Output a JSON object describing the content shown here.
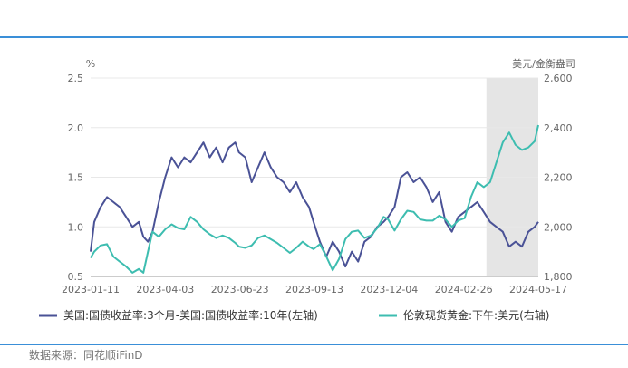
{
  "source_text": "数据来源：同花顺iFinD",
  "colors": {
    "left_series": "#4a5296",
    "right_series": "#3dbdb0",
    "shade": "#e5e5e5",
    "grid": "#e8e8e8"
  },
  "chart_data": {
    "type": "line",
    "left_axis": {
      "unit": "%",
      "ylim": [
        0.5,
        2.5
      ],
      "ticks": [
        "0.5",
        "1.0",
        "1.5",
        "2.0",
        "2.5"
      ]
    },
    "right_axis": {
      "unit": "美元/金衡盎司",
      "ylim": [
        1800,
        2600
      ],
      "ticks": [
        "1,800",
        "2,000",
        "2,200",
        "2,400",
        "2,600"
      ]
    },
    "x_ticks": [
      "2023-01-11",
      "2023-04-03",
      "2023-06-23",
      "2023-09-13",
      "2023-12-04",
      "2024-02-26",
      "2024-05-17"
    ],
    "shaded_range": [
      "2024-03-21",
      "2024-05-17"
    ],
    "legend_position": "bottom",
    "series": [
      {
        "name": "美国:国债收益率:3个月-美国:国债收益率:10年(左轴)",
        "axis": "left",
        "points": [
          [
            "2023-01-11",
            0.75
          ],
          [
            "2023-01-15",
            1.05
          ],
          [
            "2023-01-22",
            1.2
          ],
          [
            "2023-01-29",
            1.3
          ],
          [
            "2023-02-05",
            1.25
          ],
          [
            "2023-02-12",
            1.2
          ],
          [
            "2023-02-19",
            1.1
          ],
          [
            "2023-02-26",
            1.0
          ],
          [
            "2023-03-05",
            1.05
          ],
          [
            "2023-03-10",
            0.9
          ],
          [
            "2023-03-15",
            0.85
          ],
          [
            "2023-03-20",
            0.95
          ],
          [
            "2023-03-27",
            1.25
          ],
          [
            "2023-04-03",
            1.5
          ],
          [
            "2023-04-10",
            1.7
          ],
          [
            "2023-04-17",
            1.6
          ],
          [
            "2023-04-24",
            1.7
          ],
          [
            "2023-05-01",
            1.65
          ],
          [
            "2023-05-08",
            1.75
          ],
          [
            "2023-05-15",
            1.85
          ],
          [
            "2023-05-22",
            1.7
          ],
          [
            "2023-05-29",
            1.8
          ],
          [
            "2023-06-05",
            1.65
          ],
          [
            "2023-06-12",
            1.8
          ],
          [
            "2023-06-19",
            1.85
          ],
          [
            "2023-06-23",
            1.75
          ],
          [
            "2023-06-30",
            1.7
          ],
          [
            "2023-07-07",
            1.45
          ],
          [
            "2023-07-14",
            1.6
          ],
          [
            "2023-07-21",
            1.75
          ],
          [
            "2023-07-28",
            1.6
          ],
          [
            "2023-08-04",
            1.5
          ],
          [
            "2023-08-11",
            1.45
          ],
          [
            "2023-08-18",
            1.35
          ],
          [
            "2023-08-25",
            1.45
          ],
          [
            "2023-09-01",
            1.3
          ],
          [
            "2023-09-08",
            1.2
          ],
          [
            "2023-09-13",
            1.05
          ],
          [
            "2023-09-20",
            0.85
          ],
          [
            "2023-09-27",
            0.7
          ],
          [
            "2023-10-04",
            0.85
          ],
          [
            "2023-10-11",
            0.75
          ],
          [
            "2023-10-18",
            0.6
          ],
          [
            "2023-10-25",
            0.75
          ],
          [
            "2023-11-01",
            0.65
          ],
          [
            "2023-11-08",
            0.85
          ],
          [
            "2023-11-15",
            0.9
          ],
          [
            "2023-11-22",
            1.0
          ],
          [
            "2023-11-29",
            1.05
          ],
          [
            "2023-12-04",
            1.1
          ],
          [
            "2023-12-11",
            1.2
          ],
          [
            "2023-12-18",
            1.5
          ],
          [
            "2023-12-25",
            1.55
          ],
          [
            "2024-01-01",
            1.45
          ],
          [
            "2024-01-08",
            1.5
          ],
          [
            "2024-01-15",
            1.4
          ],
          [
            "2024-01-22",
            1.25
          ],
          [
            "2024-01-29",
            1.35
          ],
          [
            "2024-02-05",
            1.05
          ],
          [
            "2024-02-12",
            0.95
          ],
          [
            "2024-02-19",
            1.1
          ],
          [
            "2024-02-26",
            1.15
          ],
          [
            "2024-03-04",
            1.2
          ],
          [
            "2024-03-11",
            1.25
          ],
          [
            "2024-03-18",
            1.15
          ],
          [
            "2024-03-25",
            1.05
          ],
          [
            "2024-04-01",
            1.0
          ],
          [
            "2024-04-08",
            0.95
          ],
          [
            "2024-04-15",
            0.8
          ],
          [
            "2024-04-22",
            0.85
          ],
          [
            "2024-04-29",
            0.8
          ],
          [
            "2024-05-06",
            0.95
          ],
          [
            "2024-05-13",
            1.0
          ],
          [
            "2024-05-17",
            1.05
          ]
        ]
      },
      {
        "name": "伦敦现货黄金:下午:美元(右轴)",
        "axis": "right",
        "points": [
          [
            "2023-01-11",
            1875
          ],
          [
            "2023-01-15",
            1900
          ],
          [
            "2023-01-22",
            1925
          ],
          [
            "2023-01-29",
            1930
          ],
          [
            "2023-02-05",
            1880
          ],
          [
            "2023-02-12",
            1860
          ],
          [
            "2023-02-19",
            1840
          ],
          [
            "2023-02-26",
            1815
          ],
          [
            "2023-03-05",
            1830
          ],
          [
            "2023-03-10",
            1815
          ],
          [
            "2023-03-15",
            1900
          ],
          [
            "2023-03-20",
            1980
          ],
          [
            "2023-03-27",
            1960
          ],
          [
            "2023-04-03",
            1990
          ],
          [
            "2023-04-10",
            2010
          ],
          [
            "2023-04-17",
            1995
          ],
          [
            "2023-04-24",
            1990
          ],
          [
            "2023-05-01",
            2040
          ],
          [
            "2023-05-08",
            2020
          ],
          [
            "2023-05-15",
            1990
          ],
          [
            "2023-05-22",
            1970
          ],
          [
            "2023-05-29",
            1955
          ],
          [
            "2023-06-05",
            1965
          ],
          [
            "2023-06-12",
            1955
          ],
          [
            "2023-06-19",
            1935
          ],
          [
            "2023-06-23",
            1920
          ],
          [
            "2023-06-30",
            1915
          ],
          [
            "2023-07-07",
            1925
          ],
          [
            "2023-07-14",
            1955
          ],
          [
            "2023-07-21",
            1965
          ],
          [
            "2023-07-28",
            1950
          ],
          [
            "2023-08-04",
            1935
          ],
          [
            "2023-08-11",
            1915
          ],
          [
            "2023-08-18",
            1895
          ],
          [
            "2023-08-25",
            1915
          ],
          [
            "2023-09-01",
            1940
          ],
          [
            "2023-09-08",
            1920
          ],
          [
            "2023-09-13",
            1910
          ],
          [
            "2023-09-20",
            1930
          ],
          [
            "2023-09-27",
            1880
          ],
          [
            "2023-10-04",
            1825
          ],
          [
            "2023-10-11",
            1870
          ],
          [
            "2023-10-18",
            1950
          ],
          [
            "2023-10-25",
            1980
          ],
          [
            "2023-11-01",
            1985
          ],
          [
            "2023-11-08",
            1955
          ],
          [
            "2023-11-15",
            1965
          ],
          [
            "2023-11-22",
            1995
          ],
          [
            "2023-11-29",
            2040
          ],
          [
            "2023-12-04",
            2030
          ],
          [
            "2023-12-11",
            1985
          ],
          [
            "2023-12-18",
            2030
          ],
          [
            "2023-12-25",
            2065
          ],
          [
            "2024-01-01",
            2060
          ],
          [
            "2024-01-08",
            2030
          ],
          [
            "2024-01-15",
            2025
          ],
          [
            "2024-01-22",
            2025
          ],
          [
            "2024-01-29",
            2045
          ],
          [
            "2024-02-05",
            2030
          ],
          [
            "2024-02-12",
            2000
          ],
          [
            "2024-02-19",
            2025
          ],
          [
            "2024-02-26",
            2035
          ],
          [
            "2024-03-04",
            2120
          ],
          [
            "2024-03-11",
            2180
          ],
          [
            "2024-03-18",
            2160
          ],
          [
            "2024-03-25",
            2180
          ],
          [
            "2024-04-01",
            2260
          ],
          [
            "2024-04-08",
            2340
          ],
          [
            "2024-04-15",
            2380
          ],
          [
            "2024-04-22",
            2330
          ],
          [
            "2024-04-29",
            2310
          ],
          [
            "2024-05-06",
            2320
          ],
          [
            "2024-05-13",
            2345
          ],
          [
            "2024-05-17",
            2410
          ]
        ]
      }
    ]
  }
}
